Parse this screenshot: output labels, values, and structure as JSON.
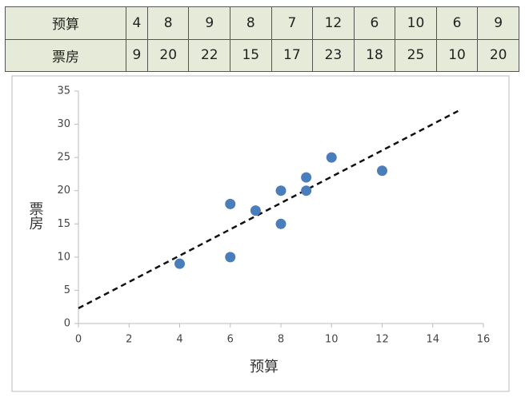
{
  "table": {
    "rows": [
      [
        "预算",
        "4",
        "8",
        "9",
        "8",
        "7",
        "12",
        "6",
        "10",
        "6",
        "9"
      ],
      [
        "票房",
        "9",
        "20",
        "22",
        "15",
        "17",
        "23",
        "18",
        "25",
        "10",
        "20"
      ]
    ]
  },
  "chart_data": {
    "type": "scatter",
    "x_label": "预算",
    "y_label": "票房",
    "points": {
      "x": [
        4,
        8,
        9,
        8,
        7,
        12,
        6,
        10,
        6,
        9
      ],
      "y": [
        9,
        20,
        22,
        15,
        17,
        23,
        18,
        25,
        10,
        20
      ],
      "color": "#4a7ebb"
    },
    "trendline": {
      "x": [
        0,
        15
      ],
      "y": [
        2.3,
        32
      ],
      "color": "#111",
      "dashed": true
    },
    "xlim": [
      0,
      16
    ],
    "xticks": [
      0,
      2,
      4,
      6,
      8,
      10,
      12,
      14,
      16
    ],
    "ylim": [
      0,
      35
    ],
    "yticks": [
      0,
      5,
      10,
      15,
      20,
      25,
      30,
      35
    ],
    "grid": false
  }
}
